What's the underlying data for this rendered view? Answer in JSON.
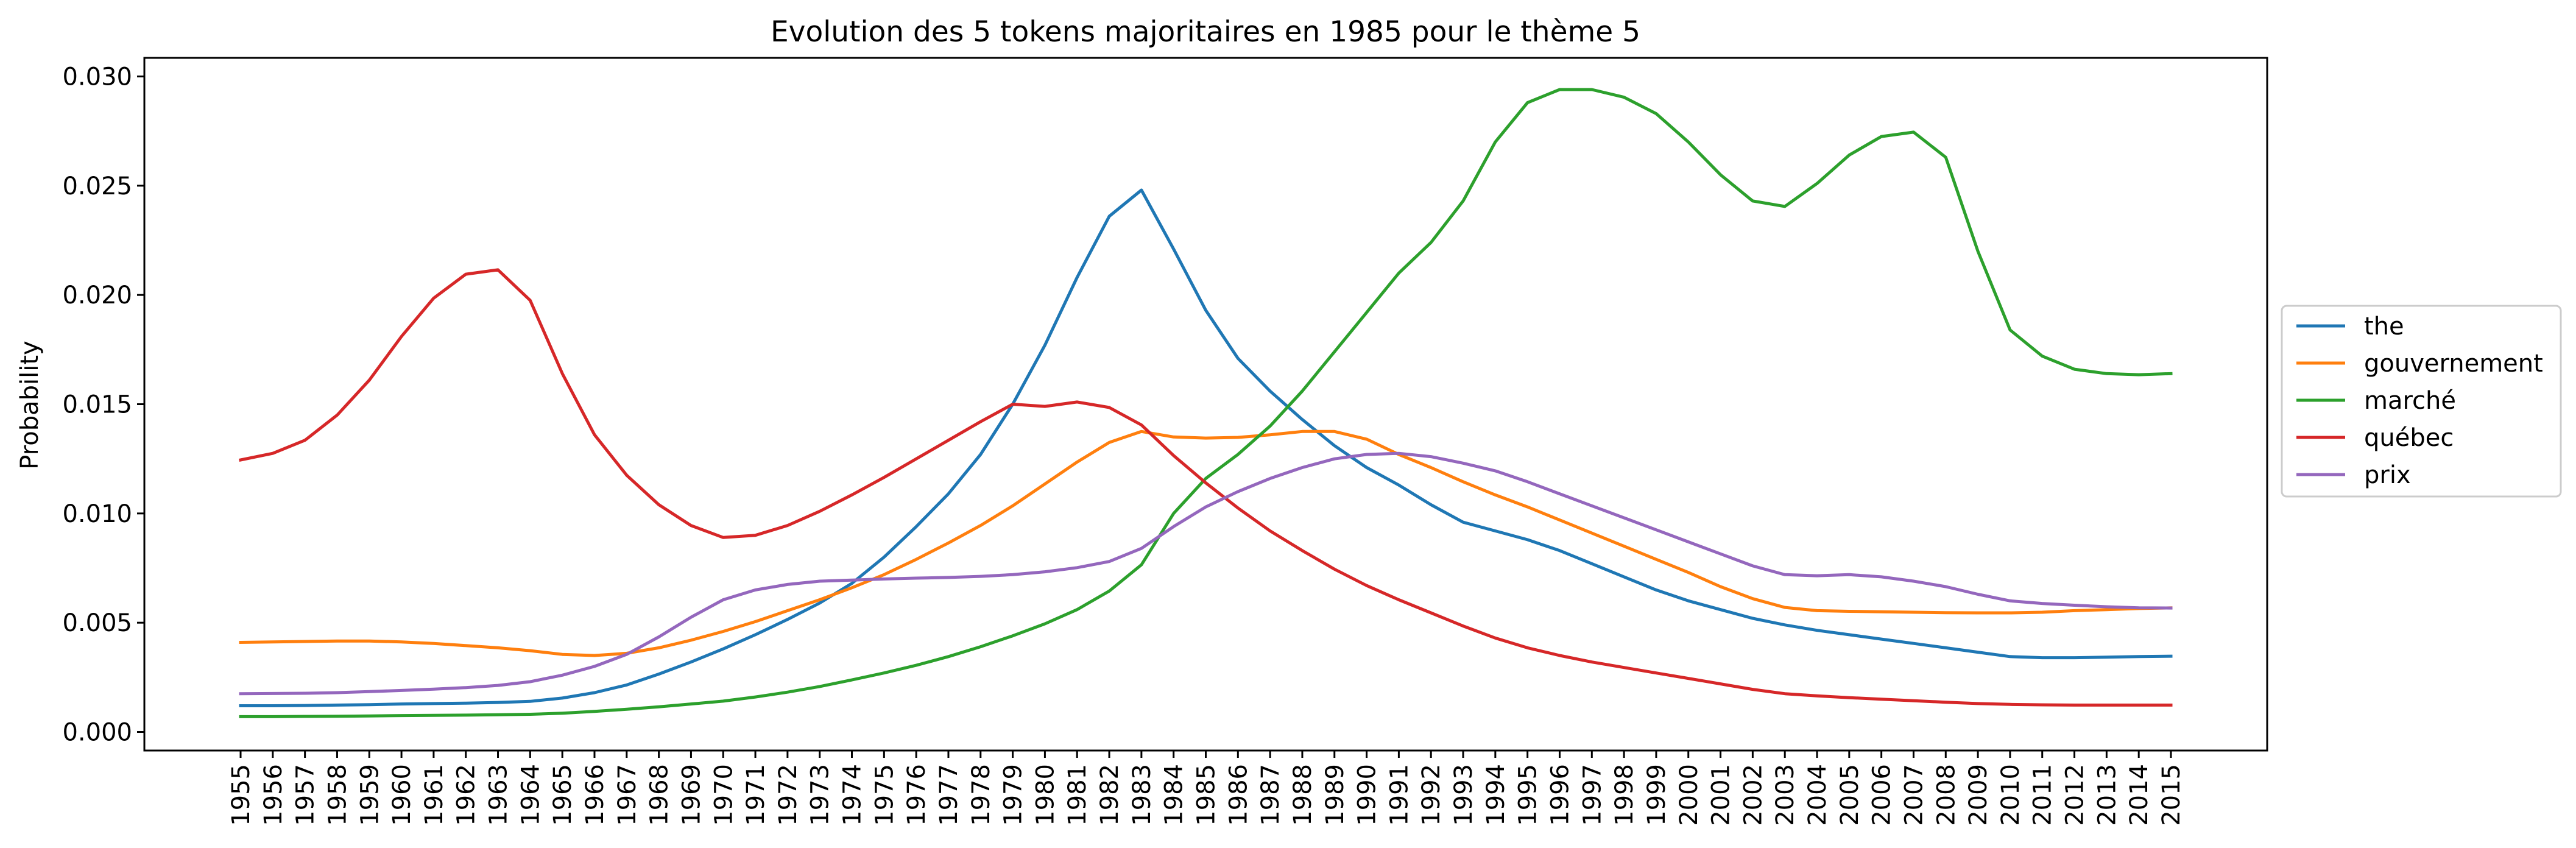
{
  "chart_data": {
    "type": "line",
    "title": "Evolution des 5 tokens majoritaires en 1985 pour le thème 5",
    "xlabel": "",
    "ylabel": "Probability",
    "ylim": [
      -0.00085,
      0.03085
    ],
    "yticks": [
      0.0,
      0.005,
      0.01,
      0.015,
      0.02,
      0.025,
      0.03
    ],
    "ytick_labels": [
      "0.000",
      "0.005",
      "0.010",
      "0.015",
      "0.020",
      "0.025",
      "0.030"
    ],
    "categories": [
      "1955",
      "1956",
      "1957",
      "1958",
      "1959",
      "1960",
      "1961",
      "1962",
      "1963",
      "1964",
      "1965",
      "1966",
      "1967",
      "1968",
      "1969",
      "1970",
      "1971",
      "1972",
      "1973",
      "1974",
      "1975",
      "1976",
      "1977",
      "1978",
      "1979",
      "1980",
      "1981",
      "1982",
      "1983",
      "1984",
      "1985",
      "1986",
      "1987",
      "1988",
      "1989",
      "1990",
      "1991",
      "1992",
      "1993",
      "1994",
      "1995",
      "1996",
      "1997",
      "1998",
      "1999",
      "2000",
      "2001",
      "2002",
      "2003",
      "2004",
      "2005",
      "2006",
      "2007",
      "2008",
      "2009",
      "2010",
      "2011",
      "2012",
      "2013",
      "2014",
      "2015"
    ],
    "grid": false,
    "legend_position": "right",
    "series": [
      {
        "name": "the",
        "color": "#1f77b4",
        "values": [
          0.0012,
          0.0012,
          0.00121,
          0.00123,
          0.00125,
          0.00128,
          0.0013,
          0.00132,
          0.00135,
          0.0014,
          0.00155,
          0.0018,
          0.00215,
          0.00265,
          0.0032,
          0.0038,
          0.00445,
          0.00515,
          0.0059,
          0.0068,
          0.008,
          0.0094,
          0.0109,
          0.0127,
          0.015,
          0.0177,
          0.0208,
          0.0236,
          0.0248,
          0.0221,
          0.0193,
          0.0171,
          0.0156,
          0.0143,
          0.0131,
          0.0121,
          0.0113,
          0.0104,
          0.0096,
          0.0092,
          0.0088,
          0.0083,
          0.0077,
          0.0071,
          0.0065,
          0.006,
          0.0056,
          0.0052,
          0.0049,
          0.00465,
          0.00445,
          0.00425,
          0.00405,
          0.00385,
          0.00365,
          0.00345,
          0.0034,
          0.0034,
          0.00342,
          0.00345,
          0.00347
        ]
      },
      {
        "name": "gouvernement",
        "color": "#ff7f0e",
        "values": [
          0.0041,
          0.00412,
          0.00414,
          0.00416,
          0.00416,
          0.00412,
          0.00405,
          0.00395,
          0.00385,
          0.00372,
          0.00355,
          0.0035,
          0.0036,
          0.00385,
          0.0042,
          0.0046,
          0.00505,
          0.00555,
          0.00605,
          0.0066,
          0.0072,
          0.0079,
          0.00865,
          0.00945,
          0.01035,
          0.01135,
          0.01235,
          0.01325,
          0.01375,
          0.0135,
          0.01345,
          0.01348,
          0.0136,
          0.01375,
          0.01375,
          0.0134,
          0.0127,
          0.0121,
          0.01145,
          0.01085,
          0.0103,
          0.0097,
          0.0091,
          0.0085,
          0.0079,
          0.0073,
          0.00665,
          0.0061,
          0.0057,
          0.00555,
          0.00552,
          0.0055,
          0.00548,
          0.00546,
          0.00545,
          0.00545,
          0.00548,
          0.00555,
          0.0056,
          0.00565,
          0.00568
        ]
      },
      {
        "name": "marché",
        "color": "#2ca02c",
        "values": [
          0.0007,
          0.0007,
          0.00071,
          0.00072,
          0.00073,
          0.00075,
          0.00076,
          0.00077,
          0.00079,
          0.00081,
          0.00086,
          0.00094,
          0.00104,
          0.00115,
          0.00128,
          0.00141,
          0.0016,
          0.00182,
          0.00208,
          0.00238,
          0.0027,
          0.00305,
          0.00345,
          0.0039,
          0.0044,
          0.00495,
          0.0056,
          0.00645,
          0.00765,
          0.01,
          0.0116,
          0.0127,
          0.014,
          0.0156,
          0.0174,
          0.0192,
          0.021,
          0.0224,
          0.0243,
          0.027,
          0.0288,
          0.0294,
          0.0294,
          0.02905,
          0.0283,
          0.027,
          0.0255,
          0.0243,
          0.02405,
          0.0251,
          0.0264,
          0.02725,
          0.02745,
          0.0263,
          0.022,
          0.0184,
          0.0172,
          0.0166,
          0.0164,
          0.01635,
          0.0164
        ]
      },
      {
        "name": "québec",
        "color": "#d62728",
        "values": [
          0.01245,
          0.01275,
          0.01335,
          0.0145,
          0.0161,
          0.0181,
          0.01985,
          0.02095,
          0.02115,
          0.01975,
          0.0164,
          0.0136,
          0.01175,
          0.0104,
          0.00945,
          0.0089,
          0.009,
          0.00945,
          0.0101,
          0.01085,
          0.01165,
          0.0125,
          0.01335,
          0.0142,
          0.015,
          0.0149,
          0.0151,
          0.01485,
          0.01405,
          0.01265,
          0.0114,
          0.01025,
          0.0092,
          0.0083,
          0.00745,
          0.0067,
          0.00605,
          0.00545,
          0.00485,
          0.0043,
          0.00385,
          0.0035,
          0.0032,
          0.00295,
          0.0027,
          0.00245,
          0.0022,
          0.00195,
          0.00175,
          0.00165,
          0.00157,
          0.0015,
          0.00143,
          0.00136,
          0.0013,
          0.00126,
          0.00124,
          0.00123,
          0.00123,
          0.00123,
          0.00123
        ]
      },
      {
        "name": "prix",
        "color": "#9467bd",
        "values": [
          0.00175,
          0.00176,
          0.00177,
          0.0018,
          0.00185,
          0.0019,
          0.00196,
          0.00203,
          0.00213,
          0.0023,
          0.0026,
          0.003,
          0.00355,
          0.00435,
          0.00525,
          0.00605,
          0.0065,
          0.00675,
          0.0069,
          0.00695,
          0.007,
          0.00704,
          0.00707,
          0.00712,
          0.0072,
          0.00733,
          0.00752,
          0.0078,
          0.0084,
          0.0094,
          0.0103,
          0.011,
          0.0116,
          0.0121,
          0.0125,
          0.0127,
          0.01275,
          0.0126,
          0.0123,
          0.01195,
          0.01145,
          0.0109,
          0.01035,
          0.0098,
          0.00925,
          0.0087,
          0.00815,
          0.0076,
          0.0072,
          0.00715,
          0.0072,
          0.0071,
          0.0069,
          0.00665,
          0.0063,
          0.006,
          0.00588,
          0.0058,
          0.00573,
          0.00568,
          0.00567
        ]
      }
    ]
  }
}
